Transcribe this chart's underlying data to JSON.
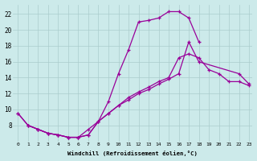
{
  "xlabel": "Windchill (Refroidissement éolien,°C)",
  "background_color": "#cceaea",
  "grid_color": "#aacccc",
  "line_color": "#990099",
  "x_min": 0,
  "x_max": 23,
  "y_min": 6,
  "y_max": 23,
  "yticks": [
    8,
    10,
    12,
    14,
    16,
    18,
    20,
    22
  ],
  "xticks": [
    0,
    1,
    2,
    3,
    4,
    5,
    6,
    7,
    8,
    9,
    10,
    11,
    12,
    13,
    14,
    15,
    16,
    17,
    18,
    19,
    20,
    21,
    22,
    23
  ],
  "curve1_x": [
    0,
    1,
    2,
    3,
    4,
    5,
    6,
    7,
    8,
    9,
    10,
    11,
    12,
    13,
    14,
    15,
    16,
    17,
    18
  ],
  "curve1_y": [
    9.5,
    8.0,
    7.5,
    7.0,
    6.8,
    6.5,
    6.5,
    6.8,
    8.5,
    11.0,
    14.5,
    17.5,
    21.0,
    21.2,
    21.5,
    22.3,
    22.3,
    21.5,
    18.5
  ],
  "curve2_x": [
    0,
    1,
    2,
    3,
    4,
    5,
    6,
    7,
    8,
    9,
    10,
    11,
    12,
    13,
    14,
    15,
    16,
    17,
    18,
    19,
    20,
    21,
    22,
    23
  ],
  "curve2_y": [
    9.5,
    8.0,
    7.5,
    7.0,
    6.8,
    6.5,
    6.5,
    6.8,
    8.5,
    9.5,
    10.5,
    11.5,
    12.2,
    12.8,
    13.5,
    14.0,
    16.5,
    17.0,
    16.5,
    15.0,
    14.5,
    13.5,
    13.5,
    13.0
  ],
  "curve3_x": [
    1,
    2,
    3,
    4,
    5,
    6,
    7,
    8,
    9,
    10,
    11,
    12,
    13,
    14,
    15,
    16,
    17,
    18,
    22,
    23
  ],
  "curve3_y": [
    8.0,
    7.5,
    7.0,
    6.8,
    6.5,
    6.5,
    7.5,
    8.5,
    9.5,
    10.5,
    11.2,
    12.0,
    12.5,
    13.2,
    13.8,
    14.5,
    18.5,
    16.0,
    14.5,
    13.2
  ]
}
